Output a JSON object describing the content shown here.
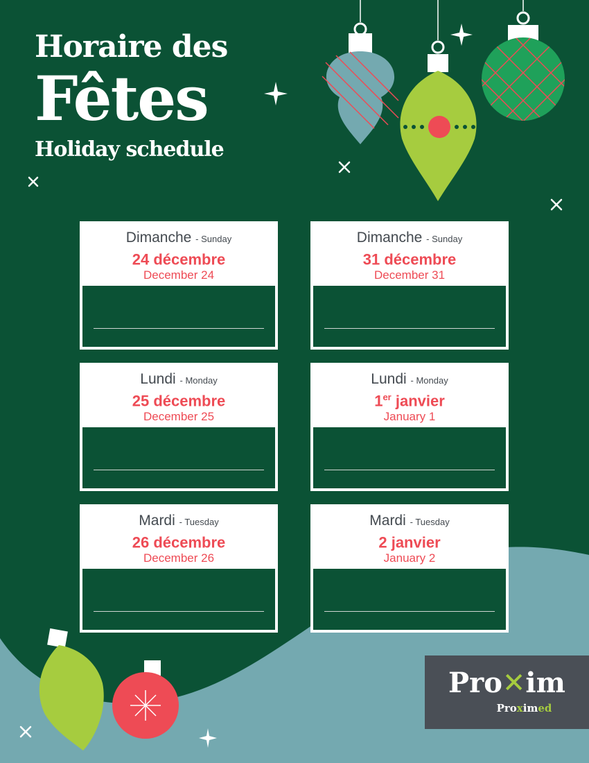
{
  "title": {
    "line1": "Horaire des",
    "line2": "Fêtes",
    "line3": "Holiday schedule"
  },
  "days": [
    {
      "day_fr": "Dimanche",
      "day_en": "- Sunday",
      "date_fr": "24 décembre",
      "date_fr_sup": "",
      "date_fr_rest": "",
      "date_en": "December 24",
      "hours": ""
    },
    {
      "day_fr": "Dimanche",
      "day_en": "- Sunday",
      "date_fr": "31 décembre",
      "date_fr_sup": "",
      "date_fr_rest": "",
      "date_en": "December 31",
      "hours": ""
    },
    {
      "day_fr": "Lundi",
      "day_en": "- Monday",
      "date_fr": "25 décembre",
      "date_fr_sup": "",
      "date_fr_rest": "",
      "date_en": "December 25",
      "hours": ""
    },
    {
      "day_fr": "Lundi",
      "day_en": "- Monday",
      "date_fr": "1",
      "date_fr_sup": "er",
      "date_fr_rest": " janvier",
      "date_en": "January 1",
      "hours": ""
    },
    {
      "day_fr": "Mardi",
      "day_en": "- Tuesday",
      "date_fr": "26 décembre",
      "date_fr_sup": "",
      "date_fr_rest": "",
      "date_en": "December 26",
      "hours": ""
    },
    {
      "day_fr": "Mardi",
      "day_en": "- Tuesday",
      "date_fr": "2 janvier",
      "date_fr_sup": "",
      "date_fr_rest": "",
      "date_en": "January 2",
      "hours": ""
    }
  ],
  "logo": {
    "main_a": "Pro",
    "main_x": "✕",
    "main_b": "im",
    "sub_a": "Pro",
    "sub_x": "x",
    "sub_b": "im",
    "sub_c": "ed"
  },
  "colors": {
    "background": "#0b5235",
    "wave": "#74a9b0",
    "accent_red": "#ee4b55",
    "lime": "#a6cc3f",
    "logo_bg": "#4a4f56"
  }
}
